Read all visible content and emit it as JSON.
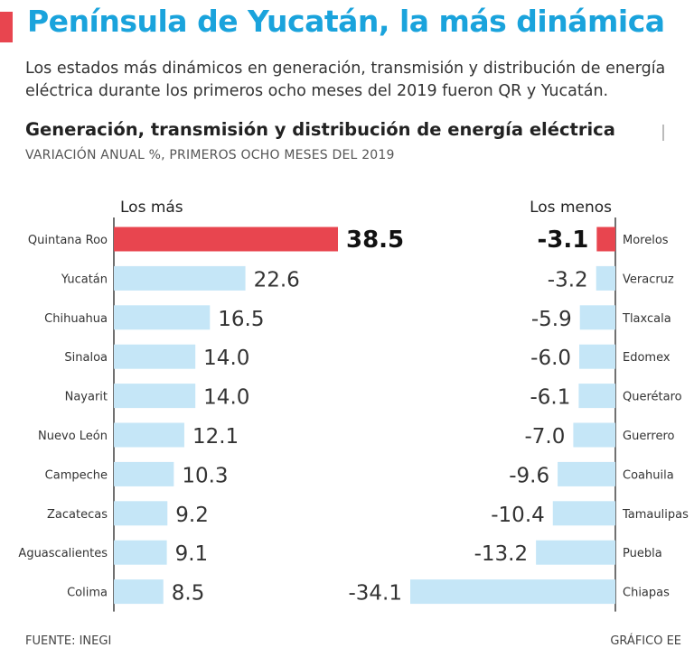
{
  "header": {
    "title": "Península de Yucatán, la más dinámica",
    "subtitle": "Los estados más dinámicos en generación, transmisión y distribución de energía eléctrica durante los primeros ocho meses del 2019 fueron QR y Yucatán."
  },
  "colors": {
    "accent": "#e8454f",
    "title_color": "#1aa3dc",
    "bar": "#c5e6f7",
    "text": "#222222"
  },
  "chart_data": {
    "type": "bar",
    "title": "Generación, transmisión y distribución de energía eléctrica",
    "subtitle": "VARIACIÓN ANUAL %, PRIMEROS OCHO MESES DEL 2019",
    "left_panel": {
      "heading": "Los más",
      "categories": [
        "Quintana Roo",
        "Yucatán",
        "Chihuahua",
        "Sinaloa",
        "Nayarit",
        "Nuevo León",
        "Campeche",
        "Zacatecas",
        "Aguascalientes",
        "Colima"
      ],
      "labels": [
        "38.5",
        "22.6",
        "16.5",
        "14.0",
        "14.0",
        "12.1",
        "10.3",
        "9.2",
        "9.1",
        "8.5"
      ],
      "values": [
        38.5,
        22.6,
        16.5,
        14.0,
        14.0,
        12.1,
        10.3,
        9.2,
        9.1,
        8.5
      ],
      "highlight_index": 0
    },
    "right_panel": {
      "heading": "Los menos",
      "categories": [
        "Morelos",
        "Veracruz",
        "Tlaxcala",
        "Edomex",
        "Querétaro",
        "Guerrero",
        "Coahuila",
        "Tamaulipas",
        "Puebla",
        "Chiapas"
      ],
      "labels": [
        "-3.1",
        "-3.2",
        "-5.9",
        "-6.0",
        "-6.1",
        "-7.0",
        "-9.6",
        "-10.4",
        "-13.2",
        "-34.1"
      ],
      "values": [
        -3.1,
        -3.2,
        -5.9,
        -6.0,
        -6.1,
        -7.0,
        -9.6,
        -10.4,
        -13.2,
        -34.1
      ],
      "highlight_index": 0
    }
  },
  "footer": {
    "source": "FUENTE: INEGI",
    "credit": "GRÁFICO EE"
  }
}
